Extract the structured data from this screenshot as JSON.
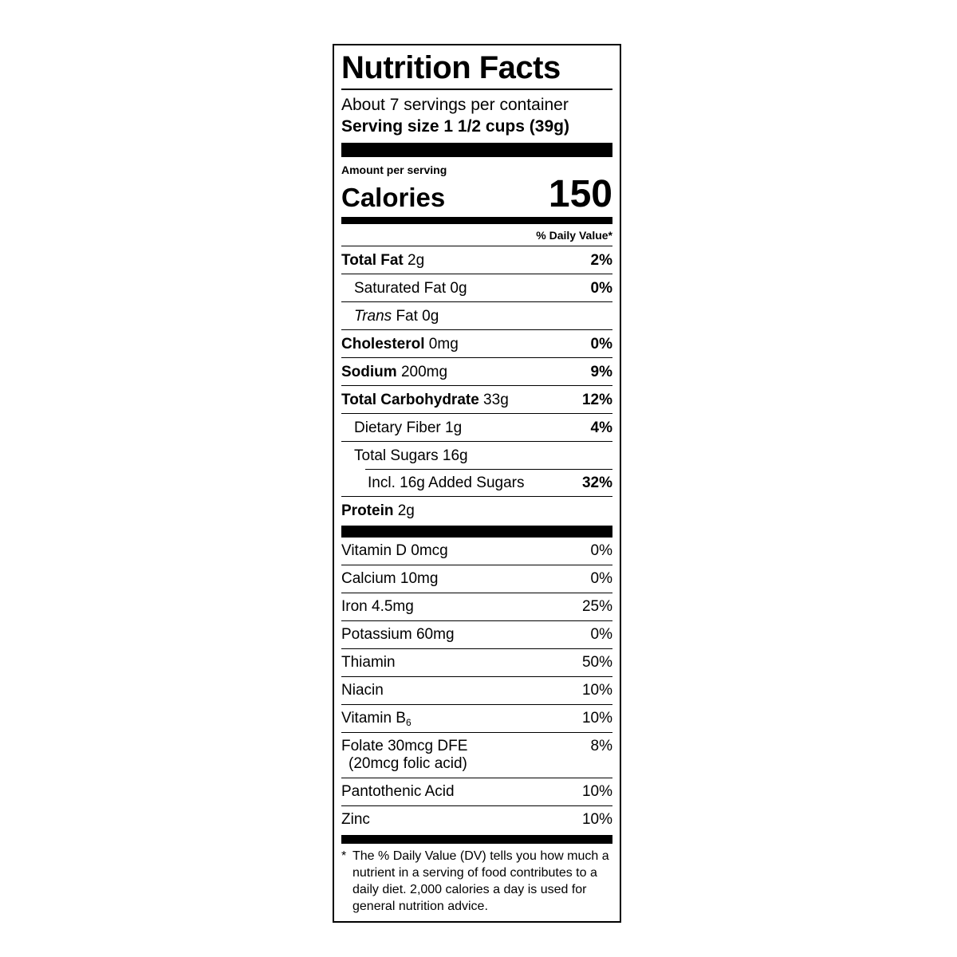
{
  "colors": {
    "ink": "#000000",
    "paper": "#ffffff"
  },
  "label": {
    "title": "Nutrition Facts",
    "servings_per_container": "About 7 servings per container",
    "serving_size": "Serving size 1 1/2 cups (39g)",
    "amount_per_serving": "Amount per serving",
    "calories_label": "Calories",
    "calories_value": "150",
    "daily_value_header": "% Daily Value*",
    "nutrients": [
      {
        "strong": "Total Fat",
        "italic": "",
        "rest": " 2g",
        "dv": "2%"
      },
      {
        "strong": "",
        "italic": "",
        "rest": "Saturated Fat 0g",
        "dv": "0%"
      },
      {
        "strong": "",
        "italic": "Trans",
        "rest": " Fat 0g",
        "dv": ""
      },
      {
        "strong": "Cholesterol",
        "italic": "",
        "rest": " 0mg",
        "dv": "0%"
      },
      {
        "strong": "Sodium",
        "italic": "",
        "rest": " 200mg",
        "dv": "9%"
      },
      {
        "strong": "Total Carbohydrate",
        "italic": "",
        "rest": " 33g",
        "dv": "12%"
      },
      {
        "strong": "",
        "italic": "",
        "rest": "Dietary Fiber 1g",
        "dv": "4%"
      },
      {
        "strong": "",
        "italic": "",
        "rest": "Total Sugars 16g",
        "dv": ""
      },
      {
        "strong": "",
        "italic": "",
        "rest": "Incl. 16g Added Sugars",
        "dv": "32%"
      },
      {
        "strong": "Protein",
        "italic": "",
        "rest": " 2g",
        "dv": ""
      }
    ],
    "vitamins": [
      {
        "text": "Vitamin D 0mcg",
        "sub": "",
        "line2": "",
        "dv": "0%"
      },
      {
        "text": "Calcium 10mg",
        "sub": "",
        "line2": "",
        "dv": "0%"
      },
      {
        "text": "Iron 4.5mg",
        "sub": "",
        "line2": "",
        "dv": "25%"
      },
      {
        "text": "Potassium 60mg",
        "sub": "",
        "line2": "",
        "dv": "0%"
      },
      {
        "text": "Thiamin",
        "sub": "",
        "line2": "",
        "dv": "50%"
      },
      {
        "text": "Niacin",
        "sub": "",
        "line2": "",
        "dv": "10%"
      },
      {
        "text": "Vitamin B",
        "sub": "6",
        "line2": "",
        "dv": "10%"
      },
      {
        "text": "Folate 30mcg DFE",
        "sub": "",
        "line2": "(20mcg folic acid)",
        "dv": "8%"
      },
      {
        "text": "Pantothenic Acid",
        "sub": "",
        "line2": "",
        "dv": "10%"
      },
      {
        "text": "Zinc",
        "sub": "",
        "line2": "",
        "dv": "10%"
      }
    ],
    "footnote_marker": "*",
    "footnote_text": "The % Daily Value (DV) tells you how much a nutrient in a serving of food contributes to a daily diet. 2,000 calories a day is used for general nutrition advice."
  }
}
